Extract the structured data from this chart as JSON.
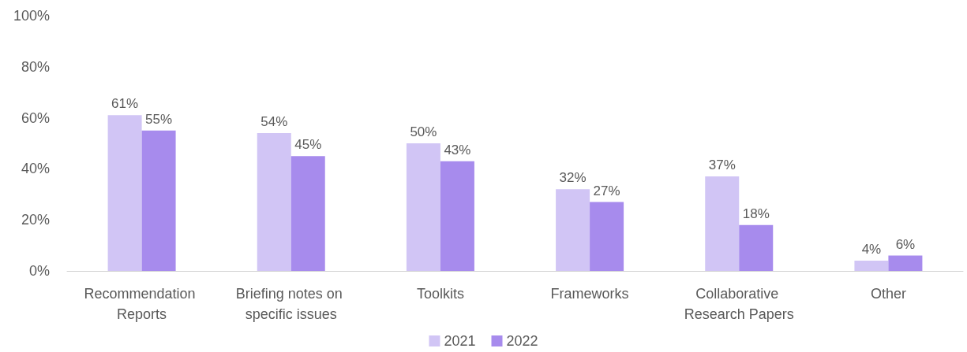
{
  "chart_data": {
    "type": "bar",
    "categories": [
      "Recommendation Reports",
      "Briefing notes on specific issues",
      "Toolkits",
      "Frameworks",
      "Collaborative Research Papers",
      "Other"
    ],
    "series": [
      {
        "name": "2021",
        "color": "#d1c5f5",
        "values": [
          61,
          54,
          50,
          32,
          37,
          4
        ],
        "value_labels": [
          "61%",
          "54%",
          "50%",
          "32%",
          "37%",
          "4%"
        ]
      },
      {
        "name": "2022",
        "color": "#a78bed",
        "values": [
          55,
          45,
          43,
          27,
          18,
          6
        ],
        "value_labels": [
          "55%",
          "45%",
          "43%",
          "27%",
          "18%",
          "6%"
        ]
      }
    ],
    "ylim": [
      0,
      100
    ],
    "yticks": [
      {
        "value": 0,
        "label": "0%"
      },
      {
        "value": 20,
        "label": "20%"
      },
      {
        "value": 40,
        "label": "40%"
      },
      {
        "value": 60,
        "label": "60%"
      },
      {
        "value": 80,
        "label": "80%"
      },
      {
        "value": 100,
        "label": "100%"
      }
    ],
    "grid": false,
    "legend": "bottom"
  }
}
